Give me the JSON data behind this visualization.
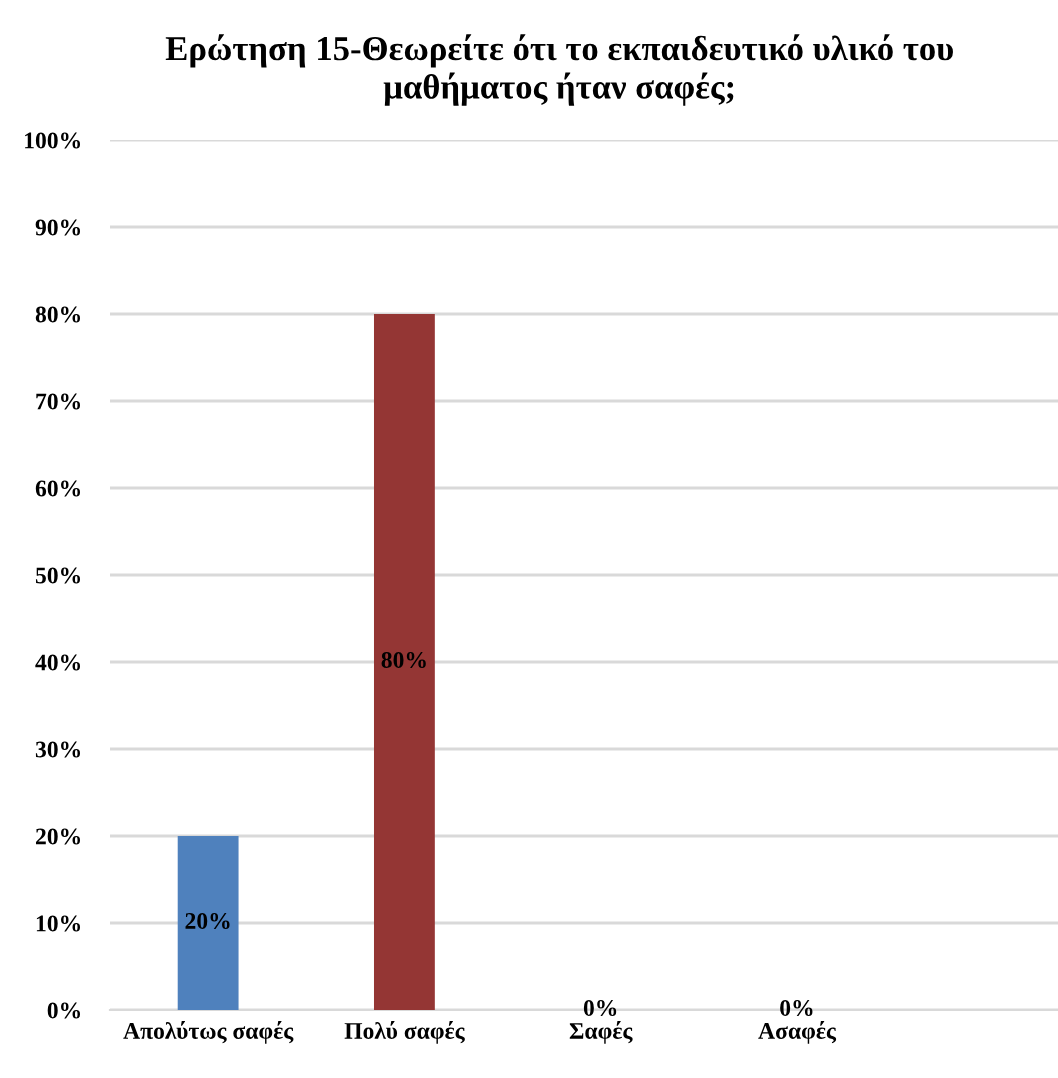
{
  "chart_data": {
    "type": "bar",
    "title": "Ερώτηση 15-Θεωρείτε ότι το εκπαιδευτικό υλικό του\nμαθήματος ήταν σαφές;",
    "categories": [
      "Απολύτως σαφές",
      "Πολύ σαφές",
      "Σαφές",
      "Ασαφές"
    ],
    "values": [
      20,
      80,
      0,
      0
    ],
    "colors": [
      "#4f81bd",
      "#943634",
      "#9bbb59",
      "#8064a2"
    ],
    "value_labels": [
      "20%",
      "80%",
      "0%",
      "0%"
    ],
    "ylim": [
      0,
      100
    ],
    "yticks": [
      {
        "value": 0,
        "label": "0%"
      },
      {
        "value": 10,
        "label": "10%"
      },
      {
        "value": 20,
        "label": "20%"
      },
      {
        "value": 30,
        "label": "30%"
      },
      {
        "value": 40,
        "label": "40%"
      },
      {
        "value": 50,
        "label": "50%"
      },
      {
        "value": 60,
        "label": "60%"
      },
      {
        "value": 70,
        "label": "70%"
      },
      {
        "value": 80,
        "label": "80%"
      },
      {
        "value": 90,
        "label": "90%"
      },
      {
        "value": 100,
        "label": "100%"
      }
    ],
    "grid": "y"
  }
}
